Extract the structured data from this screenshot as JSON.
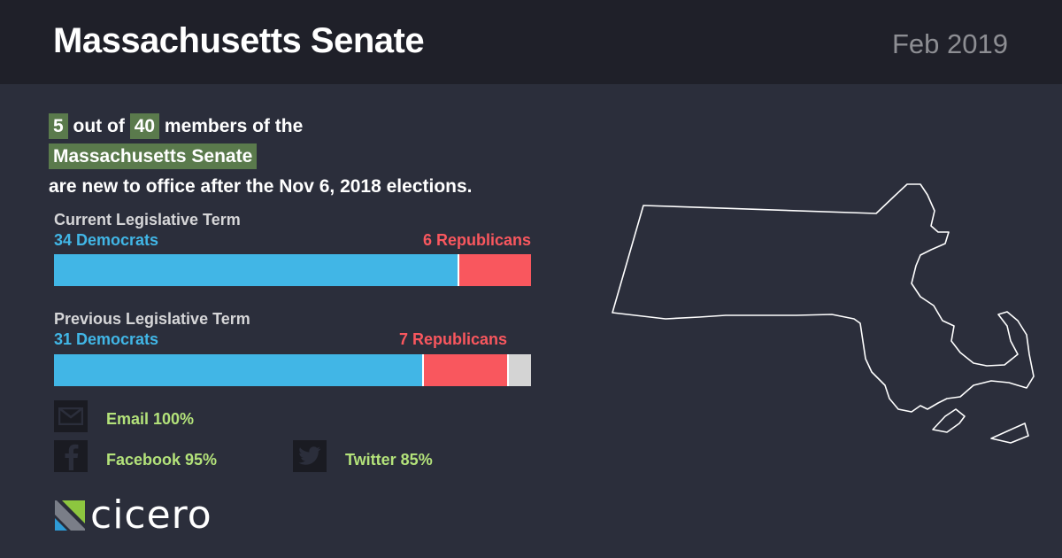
{
  "header": {
    "title": "Massachusetts Senate",
    "date": "Feb 2019"
  },
  "headline": {
    "new_count": "5",
    "out_of": "out of",
    "total": "40",
    "members_of_the": "members of the",
    "body_name": "Massachusetts Senate",
    "suffix": "are new to office after the Nov 6, 2018 elections."
  },
  "current_term": {
    "label": "Current Legislative Term",
    "dem_label": "34 Democrats",
    "rep_label": "6 Republicans",
    "dem": 34,
    "rep": 6,
    "other": 0,
    "total": 40
  },
  "previous_term": {
    "label": "Previous Legislative Term",
    "dem_label": "31 Democrats",
    "rep_label": "7 Republicans",
    "dem": 31,
    "rep": 7,
    "other": 2,
    "total": 40
  },
  "social": {
    "email": "Email 100%",
    "facebook": "Facebook 95%",
    "twitter": "Twitter 85%"
  },
  "logo": {
    "text": "cicero"
  },
  "colors": {
    "democrat": "#41b6e6",
    "republican": "#f9575e",
    "other": "#d4d4d4",
    "highlight": "#5a7a4c",
    "social_text": "#b3e27a",
    "background": "#2b2e3b"
  },
  "map": {
    "icon": "massachusetts-state-outline"
  }
}
